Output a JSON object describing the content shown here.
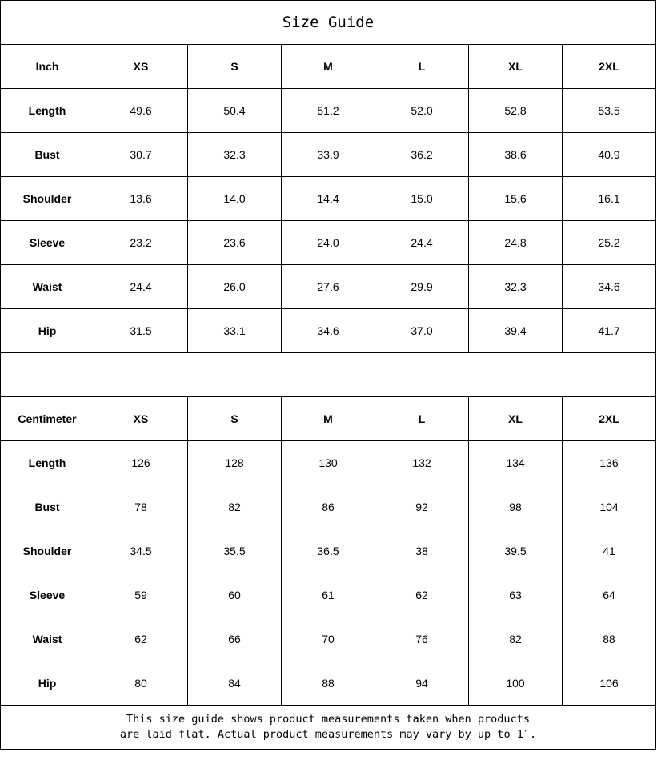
{
  "title": "Size Guide",
  "sizes": [
    "XS",
    "S",
    "M",
    "L",
    "XL",
    "2XL"
  ],
  "inch": {
    "unit_label": "Inch",
    "rows": [
      {
        "label": "Length",
        "values": [
          "49.6",
          "50.4",
          "51.2",
          "52.0",
          "52.8",
          "53.5"
        ]
      },
      {
        "label": "Bust",
        "values": [
          "30.7",
          "32.3",
          "33.9",
          "36.2",
          "38.6",
          "40.9"
        ]
      },
      {
        "label": "Shoulder",
        "values": [
          "13.6",
          "14.0",
          "14.4",
          "15.0",
          "15.6",
          "16.1"
        ]
      },
      {
        "label": "Sleeve",
        "values": [
          "23.2",
          "23.6",
          "24.0",
          "24.4",
          "24.8",
          "25.2"
        ]
      },
      {
        "label": "Waist",
        "values": [
          "24.4",
          "26.0",
          "27.6",
          "29.9",
          "32.3",
          "34.6"
        ]
      },
      {
        "label": "Hip",
        "values": [
          "31.5",
          "33.1",
          "34.6",
          "37.0",
          "39.4",
          "41.7"
        ]
      }
    ]
  },
  "centimeter": {
    "unit_label": "Centimeter",
    "rows": [
      {
        "label": "Length",
        "values": [
          "126",
          "128",
          "130",
          "132",
          "134",
          "136"
        ]
      },
      {
        "label": "Bust",
        "values": [
          "78",
          "82",
          "86",
          "92",
          "98",
          "104"
        ]
      },
      {
        "label": "Shoulder",
        "values": [
          "34.5",
          "35.5",
          "36.5",
          "38",
          "39.5",
          "41"
        ]
      },
      {
        "label": "Sleeve",
        "values": [
          "59",
          "60",
          "61",
          "62",
          "63",
          "64"
        ]
      },
      {
        "label": "Waist",
        "values": [
          "62",
          "66",
          "70",
          "76",
          "82",
          "88"
        ]
      },
      {
        "label": "Hip",
        "values": [
          "80",
          "84",
          "88",
          "94",
          "100",
          "106"
        ]
      }
    ]
  },
  "note_line1": "This size guide shows product measurements taken when products",
  "note_line2": "are laid flat. Actual product measurements may vary by up to 1″."
}
